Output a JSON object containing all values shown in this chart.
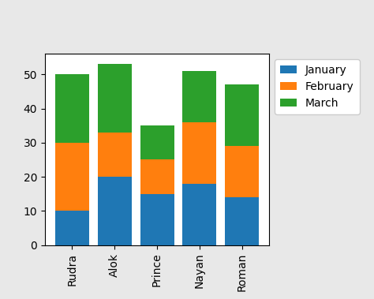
{
  "categories": [
    "Rudra",
    "Alok",
    "Prince",
    "Nayan",
    "Roman"
  ],
  "january": [
    10,
    20,
    15,
    18,
    14
  ],
  "february": [
    20,
    13,
    10,
    18,
    15
  ],
  "march": [
    20,
    20,
    10,
    15,
    18
  ],
  "colors": {
    "January": "#1f77b4",
    "February": "#ff7f0e",
    "March": "#2ca02c"
  },
  "legend_labels": [
    "January",
    "February",
    "March"
  ],
  "ylim": [
    0,
    56
  ],
  "yticks": [
    0,
    10,
    20,
    30,
    40,
    50
  ],
  "figsize": [
    4.74,
    3.79
  ],
  "dpi": 100,
  "bar_width": 0.8,
  "figure_facecolor": "#e8e8e8"
}
